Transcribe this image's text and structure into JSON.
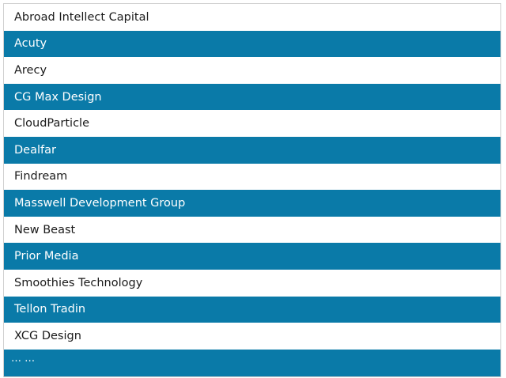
{
  "colors": {
    "row_light_bg": "#ffffff",
    "row_dark_bg": "#0a7aa8",
    "text_light": "#1a1a1a",
    "text_dark": "#ffffff"
  },
  "items": [
    {
      "label": "Abroad Intellect Capital"
    },
    {
      "label": "Acuty"
    },
    {
      "label": "Arecy"
    },
    {
      "label": "CG Max Design"
    },
    {
      "label": "CloudParticle"
    },
    {
      "label": "Dealfar"
    },
    {
      "label": "Findream"
    },
    {
      "label": "Masswell Development Group"
    },
    {
      "label": "New Beast"
    },
    {
      "label": "Prior Media"
    },
    {
      "label": "Smoothies Technology"
    },
    {
      "label": "Tellon Tradin"
    },
    {
      "label": "XCG Design"
    }
  ],
  "more_label": "… …"
}
